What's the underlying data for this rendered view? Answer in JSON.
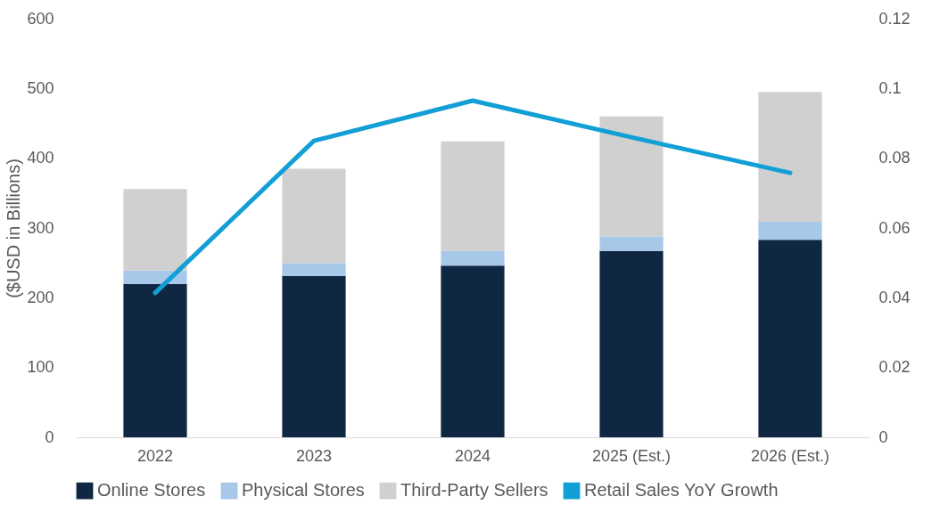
{
  "chart_data": {
    "type": "bar",
    "stacked": true,
    "ylabel": "($USD in Billions)",
    "categories": [
      "2022",
      "2023",
      "2024",
      "2025 (Est.)",
      "2026 (Est.)"
    ],
    "series": [
      {
        "name": "Online Stores",
        "color": "#0f2742",
        "values": [
          220,
          231,
          246,
          267,
          283
        ]
      },
      {
        "name": "Physical Stores",
        "color": "#a8c8ea",
        "values": [
          19,
          19,
          21,
          21,
          26
        ]
      },
      {
        "name": "Third-Party Sellers",
        "color": "#d0d0d0",
        "values": [
          117,
          135,
          157,
          172,
          186
        ]
      },
      {
        "name": "Retail Sales YoY Growth",
        "color": "#129fd6",
        "type": "line",
        "axis": "y2",
        "values": [
          0.0414,
          0.085,
          0.0965,
          0.086,
          0.0758
        ]
      }
    ],
    "ylim": [
      0,
      600
    ],
    "yticks": [
      0,
      100,
      200,
      300,
      400,
      500,
      600
    ],
    "y2lim": [
      0,
      0.12
    ],
    "y2ticks": [
      0,
      0.02,
      0.04,
      0.06,
      0.08,
      0.1,
      0.12
    ],
    "legend": "bottom",
    "grid": false
  }
}
